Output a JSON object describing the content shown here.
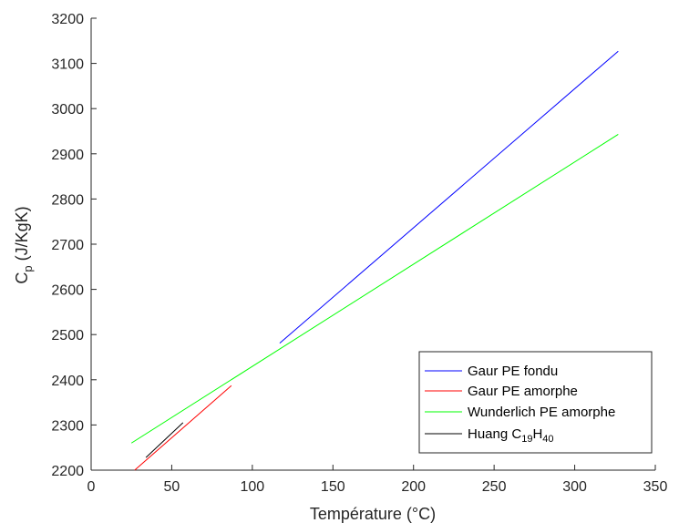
{
  "chart_data": {
    "type": "line",
    "title": "",
    "xlabel": "Température (°C)",
    "ylabel": {
      "main": "C",
      "sub": "p",
      "rest": " (J/KgK)"
    },
    "xlim": [
      0,
      350
    ],
    "ylim": [
      2200,
      3200
    ],
    "xticks": [
      0,
      50,
      100,
      150,
      200,
      250,
      300,
      350
    ],
    "yticks": [
      2200,
      2300,
      2400,
      2500,
      2600,
      2700,
      2800,
      2900,
      3000,
      3100,
      3200
    ],
    "grid": false,
    "legend_position": "bottom-right",
    "series": [
      {
        "name": "Gaur PE fondu",
        "color": "#0000ff",
        "x": [
          117,
          327
        ],
        "y": [
          2481,
          3127
        ]
      },
      {
        "name": "Gaur PE amorphe",
        "color": "#ff0000",
        "x": [
          27,
          87
        ],
        "y": [
          2200,
          2387
        ]
      },
      {
        "name": "Wunderlich PE amorphe",
        "color": "#00ff00",
        "x": [
          25,
          327
        ],
        "y": [
          2260,
          2943
        ]
      },
      {
        "name": "Huang C19H40",
        "name_parts": {
          "base": "Huang C",
          "sub1": "19",
          "mid": "H",
          "sub2": "40"
        },
        "color": "#000000",
        "x": [
          34,
          57
        ],
        "y": [
          2228,
          2305
        ]
      }
    ]
  }
}
